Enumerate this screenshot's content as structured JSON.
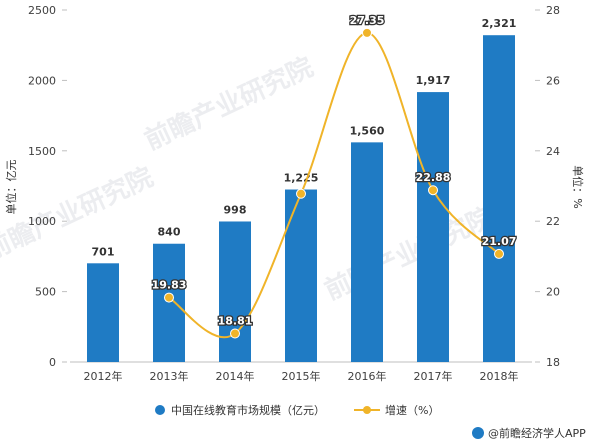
{
  "chart_data": {
    "type": "bar",
    "title": "",
    "categories": [
      "2012年",
      "2013年",
      "2014年",
      "2015年",
      "2016年",
      "2017年",
      "2018年"
    ],
    "series": [
      {
        "name": "中国在线教育市场规模（亿元）",
        "kind": "bar",
        "axis": "left",
        "values": [
          701,
          840,
          998,
          1225,
          1560,
          1917,
          2321
        ],
        "value_labels": [
          "701",
          "840",
          "998",
          "1,225",
          "1,560",
          "1,917",
          "2,321"
        ],
        "color": "#1f7bc4"
      },
      {
        "name": "增速（%）",
        "kind": "line",
        "axis": "right",
        "values": [
          null,
          19.83,
          18.81,
          22.78,
          27.35,
          22.88,
          21.07
        ],
        "value_labels": [
          "",
          "19.83",
          "18.81",
          "",
          "27.35",
          "22.88",
          "21.07"
        ],
        "color": "#f0b429"
      }
    ],
    "y_left": {
      "label": "单位：亿元",
      "ylim": [
        0,
        2500
      ],
      "ticks": [
        0,
        500,
        1000,
        1500,
        2000,
        2500
      ]
    },
    "y_right": {
      "label": "单位：%",
      "ylim": [
        18,
        28
      ],
      "ticks": [
        18,
        20,
        22,
        24,
        26,
        28
      ]
    },
    "legend_position": "bottom",
    "grid": false
  },
  "watermark": {
    "text": "前瞻产业研究院"
  },
  "credit": {
    "text": "@前瞻经济学人APP"
  }
}
